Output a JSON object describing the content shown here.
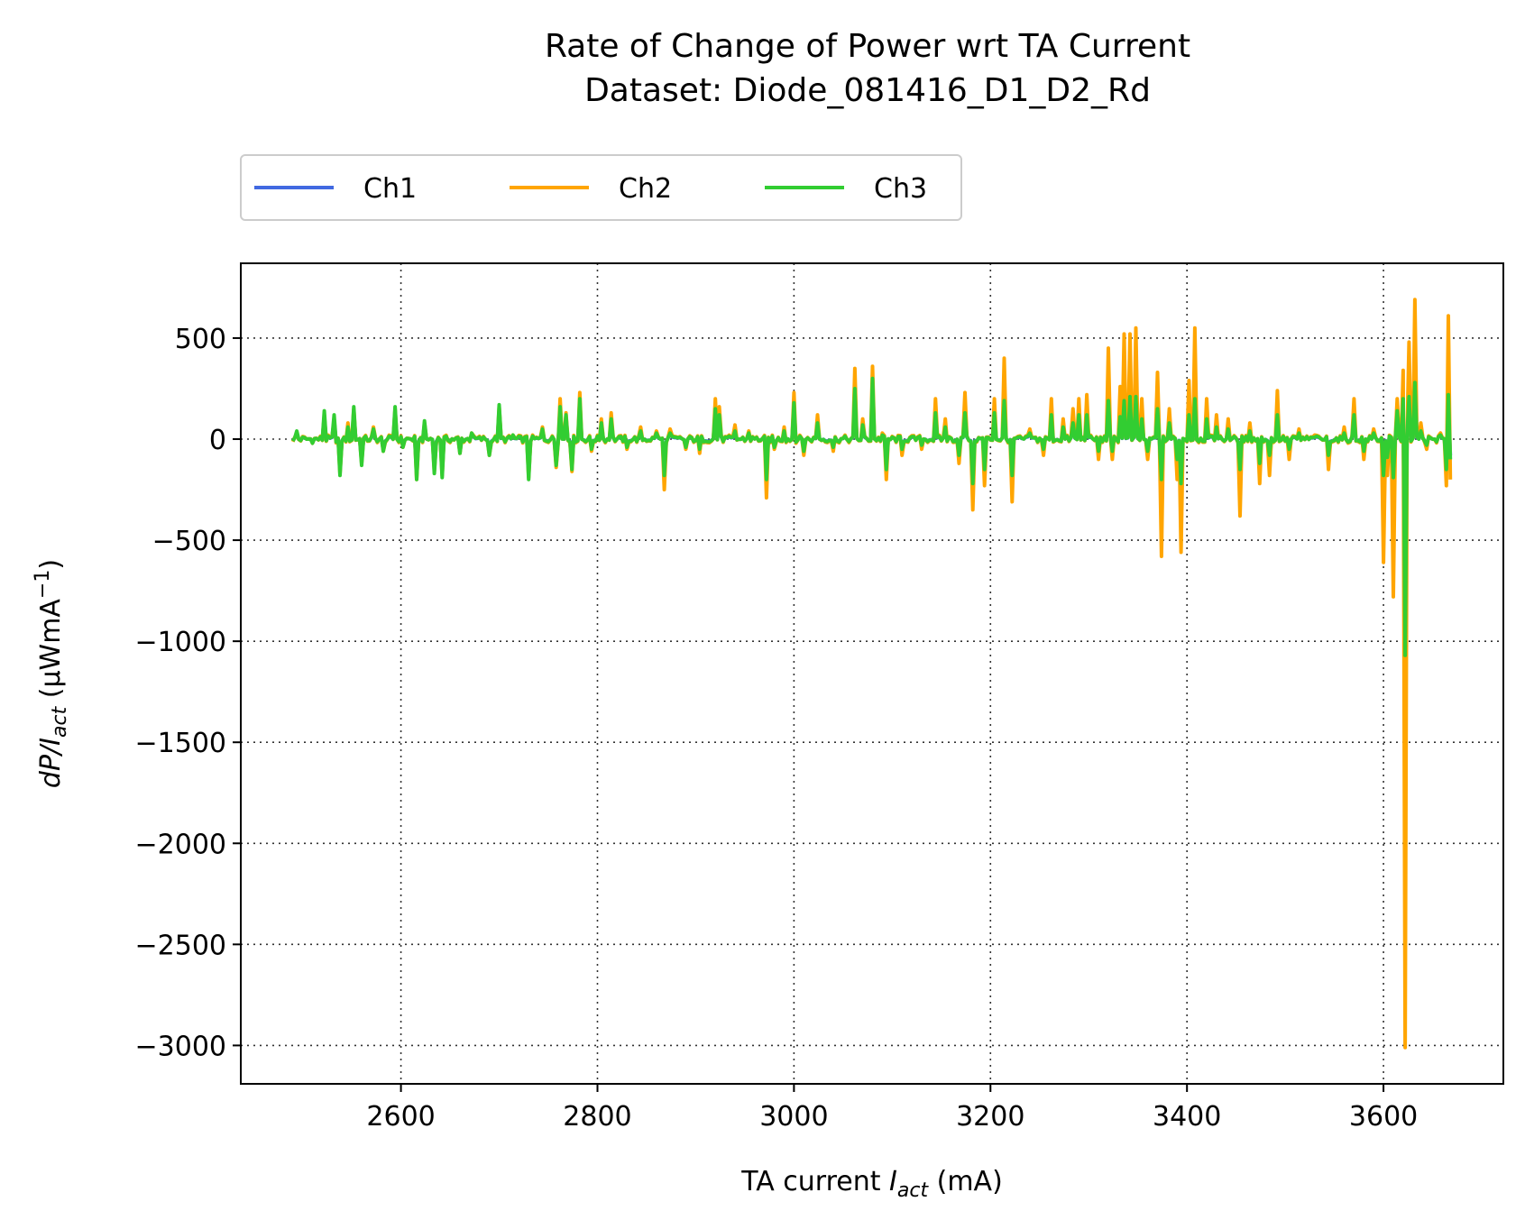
{
  "chart_data": {
    "type": "line",
    "title_line1": "Rate of Change of Power wrt TA Current",
    "title_line2": "Dataset: Diode_081416_D1_D2_Rd",
    "xlabel": {
      "main": "TA current ",
      "var": "I",
      "sub": "act",
      "unit": " (mA)"
    },
    "ylabel": {
      "main": "dP/I",
      "sub": "act",
      "unit_open": " (μWmA",
      "sup": "−1",
      "unit_close": ")"
    },
    "xlim": [
      2437,
      3722
    ],
    "ylim": [
      -3190,
      870
    ],
    "xticks": [
      2600,
      2800,
      3000,
      3200,
      3400,
      3600
    ],
    "yticks": [
      500,
      0,
      -500,
      -1000,
      -1500,
      -2000,
      -2500,
      -3000
    ],
    "ytick_labels": [
      "500",
      "0",
      "−500",
      "−1000",
      "−1500",
      "−2000",
      "−2500",
      "−3000"
    ],
    "x_range": [
      2490,
      3668
    ],
    "grid": true,
    "legend_placement": "top-left, outside above plot",
    "series": [
      {
        "name": "Ch1",
        "color": "#4169e1"
      },
      {
        "name": "Ch2",
        "color": "#ffa500"
      },
      {
        "name": "Ch3",
        "color": "#32cd32"
      }
    ],
    "spikes_ch2": [
      [
        2495,
        20
      ],
      [
        2510,
        -20
      ],
      [
        2522,
        120
      ],
      [
        2532,
        90
      ],
      [
        2538,
        -170
      ],
      [
        2546,
        80
      ],
      [
        2553,
        150
      ],
      [
        2561,
        -120
      ],
      [
        2572,
        60
      ],
      [
        2583,
        -60
      ],
      [
        2595,
        150
      ],
      [
        2603,
        -40
      ],
      [
        2616,
        -200
      ],
      [
        2625,
        80
      ],
      [
        2634,
        -160
      ],
      [
        2642,
        -180
      ],
      [
        2660,
        -70
      ],
      [
        2672,
        30
      ],
      [
        2690,
        -80
      ],
      [
        2700,
        160
      ],
      [
        2715,
        20
      ],
      [
        2730,
        -190
      ],
      [
        2745,
        60
      ],
      [
        2758,
        -140
      ],
      [
        2762,
        200
      ],
      [
        2768,
        130
      ],
      [
        2775,
        -160
      ],
      [
        2782,
        230
      ],
      [
        2795,
        -60
      ],
      [
        2805,
        100
      ],
      [
        2815,
        130
      ],
      [
        2830,
        -50
      ],
      [
        2845,
        60
      ],
      [
        2860,
        40
      ],
      [
        2868,
        -250
      ],
      [
        2875,
        50
      ],
      [
        2890,
        -50
      ],
      [
        2905,
        -70
      ],
      [
        2920,
        200
      ],
      [
        2925,
        160
      ],
      [
        2940,
        70
      ],
      [
        2955,
        40
      ],
      [
        2972,
        -290
      ],
      [
        2980,
        -50
      ],
      [
        2990,
        60
      ],
      [
        3000,
        230
      ],
      [
        3010,
        -80
      ],
      [
        3025,
        120
      ],
      [
        3040,
        -60
      ],
      [
        3062,
        350
      ],
      [
        3070,
        100
      ],
      [
        3080,
        360
      ],
      [
        3090,
        30
      ],
      [
        3095,
        -200
      ],
      [
        3110,
        -80
      ],
      [
        3130,
        -50
      ],
      [
        3145,
        200
      ],
      [
        3155,
        100
      ],
      [
        3168,
        -120
      ],
      [
        3175,
        230
      ],
      [
        3183,
        -350
      ],
      [
        3195,
        -230
      ],
      [
        3205,
        200
      ],
      [
        3215,
        400
      ],
      [
        3222,
        -310
      ],
      [
        3240,
        50
      ],
      [
        3255,
        -80
      ],
      [
        3262,
        200
      ],
      [
        3275,
        100
      ],
      [
        3285,
        150
      ],
      [
        3290,
        200
      ],
      [
        3298,
        220
      ],
      [
        3310,
        -100
      ],
      [
        3320,
        450
      ],
      [
        3325,
        -100
      ],
      [
        3332,
        260
      ],
      [
        3337,
        520
      ],
      [
        3342,
        520
      ],
      [
        3348,
        550
      ],
      [
        3355,
        200
      ],
      [
        3360,
        -100
      ],
      [
        3370,
        330
      ],
      [
        3374,
        -580
      ],
      [
        3382,
        150
      ],
      [
        3390,
        -200
      ],
      [
        3395,
        -560
      ],
      [
        3402,
        290
      ],
      [
        3408,
        550
      ],
      [
        3420,
        200
      ],
      [
        3430,
        120
      ],
      [
        3442,
        100
      ],
      [
        3455,
        -380
      ],
      [
        3465,
        80
      ],
      [
        3475,
        -220
      ],
      [
        3485,
        -180
      ],
      [
        3492,
        240
      ],
      [
        3505,
        -100
      ],
      [
        3515,
        50
      ],
      [
        3530,
        20
      ],
      [
        3545,
        -150
      ],
      [
        3560,
        60
      ],
      [
        3570,
        200
      ],
      [
        3580,
        -100
      ],
      [
        3590,
        50
      ],
      [
        3600,
        -610
      ],
      [
        3605,
        -180
      ],
      [
        3610,
        -780
      ],
      [
        3615,
        200
      ],
      [
        3620,
        340
      ],
      [
        3622,
        -3010
      ],
      [
        3626,
        480
      ],
      [
        3632,
        690
      ],
      [
        3638,
        80
      ],
      [
        3645,
        -50
      ],
      [
        3658,
        30
      ],
      [
        3665,
        -230
      ],
      [
        3667,
        610
      ],
      [
        3668,
        -200
      ]
    ],
    "spikes_ch3": [
      [
        2495,
        40
      ],
      [
        2510,
        -20
      ],
      [
        2522,
        140
      ],
      [
        2532,
        120
      ],
      [
        2538,
        -180
      ],
      [
        2546,
        60
      ],
      [
        2553,
        160
      ],
      [
        2561,
        -130
      ],
      [
        2572,
        50
      ],
      [
        2583,
        -60
      ],
      [
        2595,
        160
      ],
      [
        2603,
        -40
      ],
      [
        2616,
        -200
      ],
      [
        2625,
        90
      ],
      [
        2634,
        -170
      ],
      [
        2642,
        -190
      ],
      [
        2660,
        -70
      ],
      [
        2672,
        30
      ],
      [
        2690,
        -80
      ],
      [
        2700,
        170
      ],
      [
        2715,
        20
      ],
      [
        2730,
        -200
      ],
      [
        2745,
        50
      ],
      [
        2758,
        -130
      ],
      [
        2762,
        160
      ],
      [
        2768,
        120
      ],
      [
        2775,
        -150
      ],
      [
        2782,
        200
      ],
      [
        2795,
        -50
      ],
      [
        2805,
        80
      ],
      [
        2815,
        100
      ],
      [
        2830,
        -40
      ],
      [
        2845,
        40
      ],
      [
        2860,
        30
      ],
      [
        2868,
        -180
      ],
      [
        2875,
        30
      ],
      [
        2890,
        -40
      ],
      [
        2905,
        -50
      ],
      [
        2920,
        150
      ],
      [
        2925,
        120
      ],
      [
        2940,
        40
      ],
      [
        2955,
        30
      ],
      [
        2972,
        -200
      ],
      [
        2980,
        -40
      ],
      [
        2990,
        40
      ],
      [
        3000,
        180
      ],
      [
        3010,
        -60
      ],
      [
        3025,
        80
      ],
      [
        3040,
        -40
      ],
      [
        3062,
        250
      ],
      [
        3070,
        70
      ],
      [
        3080,
        300
      ],
      [
        3090,
        20
      ],
      [
        3095,
        -150
      ],
      [
        3110,
        -50
      ],
      [
        3130,
        -30
      ],
      [
        3145,
        130
      ],
      [
        3155,
        60
      ],
      [
        3168,
        -80
      ],
      [
        3175,
        130
      ],
      [
        3183,
        -220
      ],
      [
        3195,
        -150
      ],
      [
        3205,
        130
      ],
      [
        3215,
        190
      ],
      [
        3222,
        -180
      ],
      [
        3240,
        30
      ],
      [
        3255,
        -50
      ],
      [
        3262,
        120
      ],
      [
        3275,
        60
      ],
      [
        3285,
        80
      ],
      [
        3290,
        120
      ],
      [
        3298,
        120
      ],
      [
        3310,
        -60
      ],
      [
        3320,
        190
      ],
      [
        3325,
        -60
      ],
      [
        3332,
        110
      ],
      [
        3337,
        190
      ],
      [
        3342,
        210
      ],
      [
        3348,
        210
      ],
      [
        3355,
        100
      ],
      [
        3360,
        -60
      ],
      [
        3370,
        150
      ],
      [
        3374,
        -200
      ],
      [
        3382,
        80
      ],
      [
        3390,
        -100
      ],
      [
        3395,
        -220
      ],
      [
        3402,
        120
      ],
      [
        3408,
        200
      ],
      [
        3420,
        100
      ],
      [
        3430,
        60
      ],
      [
        3442,
        50
      ],
      [
        3455,
        -150
      ],
      [
        3465,
        40
      ],
      [
        3475,
        -120
      ],
      [
        3485,
        -80
      ],
      [
        3492,
        120
      ],
      [
        3505,
        -50
      ],
      [
        3515,
        30
      ],
      [
        3530,
        10
      ],
      [
        3545,
        -80
      ],
      [
        3560,
        30
      ],
      [
        3570,
        120
      ],
      [
        3580,
        -60
      ],
      [
        3590,
        30
      ],
      [
        3600,
        -180
      ],
      [
        3605,
        -90
      ],
      [
        3610,
        -190
      ],
      [
        3615,
        140
      ],
      [
        3620,
        200
      ],
      [
        3622,
        -1070
      ],
      [
        3626,
        210
      ],
      [
        3632,
        280
      ],
      [
        3638,
        40
      ],
      [
        3645,
        -30
      ],
      [
        3658,
        20
      ],
      [
        3665,
        -150
      ],
      [
        3667,
        220
      ],
      [
        3668,
        -100
      ]
    ]
  }
}
